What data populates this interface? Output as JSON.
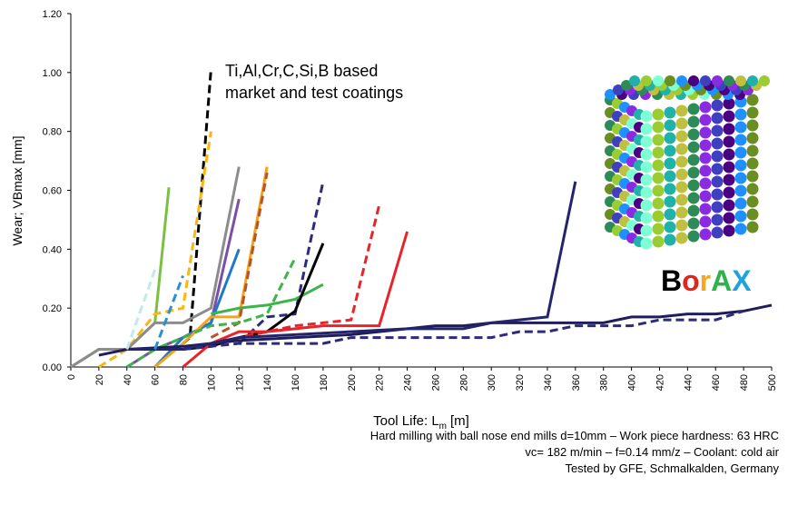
{
  "chart_data": {
    "type": "line",
    "annotation": [
      "Ti,Al,Cr,C,Si,B based",
      "market and test coatings"
    ],
    "brand_letters": [
      {
        "text": "B",
        "color": "#000000"
      },
      {
        "text": "o",
        "color": "#e0261c"
      },
      {
        "text": "r",
        "color": "#f5a623"
      },
      {
        "text": "A",
        "color": "#2eb34a"
      },
      {
        "text": "X",
        "color": "#1fa3dd"
      }
    ],
    "ylabel": "Wear; VBmax [mm]",
    "xlabel": [
      "Tool Life: L",
      "m",
      "[m]"
    ],
    "footnote": [
      "Hard milling with ball nose end mills d=10mm – Work piece hardness: 63 HRC",
      "vc= 182 m/min – f=0.14 mm/z – Coolant: cold air",
      "Tested by GFE, Schmalkalden, Germany"
    ],
    "xlim": [
      0,
      500
    ],
    "xticks": [
      0,
      20,
      40,
      60,
      80,
      100,
      120,
      140,
      160,
      180,
      200,
      220,
      240,
      260,
      280,
      300,
      320,
      340,
      360,
      380,
      400,
      420,
      440,
      460,
      480,
      500
    ],
    "ylim": [
      0,
      1.2
    ],
    "yticks": [
      {
        "value": 0,
        "label": "0.00"
      },
      {
        "value": 0.2,
        "label": "0.20"
      },
      {
        "value": 0.4,
        "label": "0.40"
      },
      {
        "value": 0.6,
        "label": "0.60"
      },
      {
        "value": 0.8,
        "label": "0.80"
      },
      {
        "value": 1.0,
        "label": "1.00"
      },
      {
        "value": 1.2,
        "label": "1.20"
      }
    ],
    "series": [
      {
        "color": "#7ac143",
        "dashed": false,
        "x": [
          0,
          20,
          40,
          60,
          70
        ],
        "values": [
          0,
          0.06,
          0.06,
          0.15,
          0.61
        ]
      },
      {
        "color": "#000000",
        "dashed": true,
        "x": [
          80,
          85,
          100
        ],
        "values": [
          0.08,
          0.1,
          1.01
        ]
      },
      {
        "color": "#fbb614",
        "dashed": true,
        "x": [
          20,
          40,
          60,
          80,
          100
        ],
        "values": [
          0,
          0.06,
          0.18,
          0.2,
          0.8
        ]
      },
      {
        "color": "#8c8c8c",
        "dashed": false,
        "x": [
          0,
          20,
          40,
          60,
          80,
          100,
          120
        ],
        "values": [
          0,
          0.06,
          0.06,
          0.15,
          0.15,
          0.2,
          0.68
        ]
      },
      {
        "color": "#7b4fa6",
        "dashed": false,
        "x": [
          40,
          60,
          80,
          100,
          120
        ],
        "values": [
          0,
          0.06,
          0.1,
          0.15,
          0.57
        ]
      },
      {
        "color": "#1f78c8",
        "dashed": false,
        "x": [
          60,
          80,
          100,
          120
        ],
        "values": [
          0,
          0.1,
          0.15,
          0.4
        ]
      },
      {
        "color": "#f7a21b",
        "dashed": false,
        "x": [
          60,
          80,
          100,
          120,
          140
        ],
        "values": [
          0,
          0.08,
          0.17,
          0.17,
          0.68
        ]
      },
      {
        "color": "#b5532a",
        "dashed": true,
        "x": [
          100,
          120,
          140
        ],
        "values": [
          0.1,
          0.15,
          0.66
        ]
      },
      {
        "color": "#2b2b7a",
        "dashed": true,
        "x": [
          120,
          140,
          160,
          180
        ],
        "values": [
          0.08,
          0.17,
          0.18,
          0.63
        ]
      },
      {
        "color": "#3cb44b",
        "dashed": true,
        "x": [
          40,
          60,
          80,
          100,
          120,
          140,
          160
        ],
        "values": [
          0,
          0.06,
          0.1,
          0.14,
          0.15,
          0.18,
          0.37
        ]
      },
      {
        "color": "#3cb44b",
        "dashed": false,
        "x": [
          100,
          120,
          140,
          160,
          180
        ],
        "values": [
          0.18,
          0.2,
          0.21,
          0.23,
          0.28
        ]
      },
      {
        "color": "#000000",
        "dashed": false,
        "x": [
          80,
          100,
          120,
          140,
          160,
          180
        ],
        "values": [
          0.06,
          0.07,
          0.1,
          0.12,
          0.19,
          0.42
        ]
      },
      {
        "color": "#e8232a",
        "dashed": true,
        "x": [
          80,
          100,
          120,
          140,
          160,
          180,
          200,
          220
        ],
        "values": [
          0.06,
          0.08,
          0.1,
          0.12,
          0.14,
          0.15,
          0.16,
          0.55
        ]
      },
      {
        "color": "#e8232a",
        "dashed": false,
        "x": [
          80,
          100,
          120,
          140,
          160,
          180,
          200,
          220,
          240
        ],
        "values": [
          0,
          0.08,
          0.12,
          0.12,
          0.13,
          0.14,
          0.14,
          0.14,
          0.46
        ]
      },
      {
        "color": "#1e1e5c",
        "dashed": false,
        "x": [
          20,
          40,
          80,
          120,
          160,
          200,
          240,
          260,
          280,
          300,
          340,
          380,
          400,
          420,
          440,
          460,
          480,
          500
        ],
        "values": [
          0.04,
          0.06,
          0.07,
          0.09,
          0.1,
          0.11,
          0.13,
          0.14,
          0.14,
          0.15,
          0.15,
          0.15,
          0.17,
          0.17,
          0.18,
          0.18,
          0.19,
          0.21
        ]
      },
      {
        "color": "#24246b",
        "dashed": false,
        "x": [
          40,
          80,
          120,
          160,
          200,
          240,
          260,
          280,
          300,
          340,
          360
        ],
        "values": [
          0.06,
          0.06,
          0.1,
          0.11,
          0.12,
          0.13,
          0.13,
          0.13,
          0.15,
          0.17,
          0.63
        ]
      },
      {
        "color": "#2b2b7a",
        "dashed": true,
        "x": [
          80,
          120,
          160,
          180,
          200,
          300,
          320,
          340,
          360,
          400,
          420,
          460,
          480
        ],
        "values": [
          0.06,
          0.08,
          0.08,
          0.08,
          0.1,
          0.1,
          0.12,
          0.12,
          0.14,
          0.14,
          0.16,
          0.16,
          0.19
        ]
      },
      {
        "color": "#bfe8f0",
        "dashed": true,
        "x": [
          40,
          60
        ],
        "values": [
          0.06,
          0.33
        ]
      },
      {
        "color": "#2b8fd6",
        "dashed": true,
        "x": [
          60,
          80
        ],
        "values": [
          0.06,
          0.31
        ]
      }
    ]
  }
}
